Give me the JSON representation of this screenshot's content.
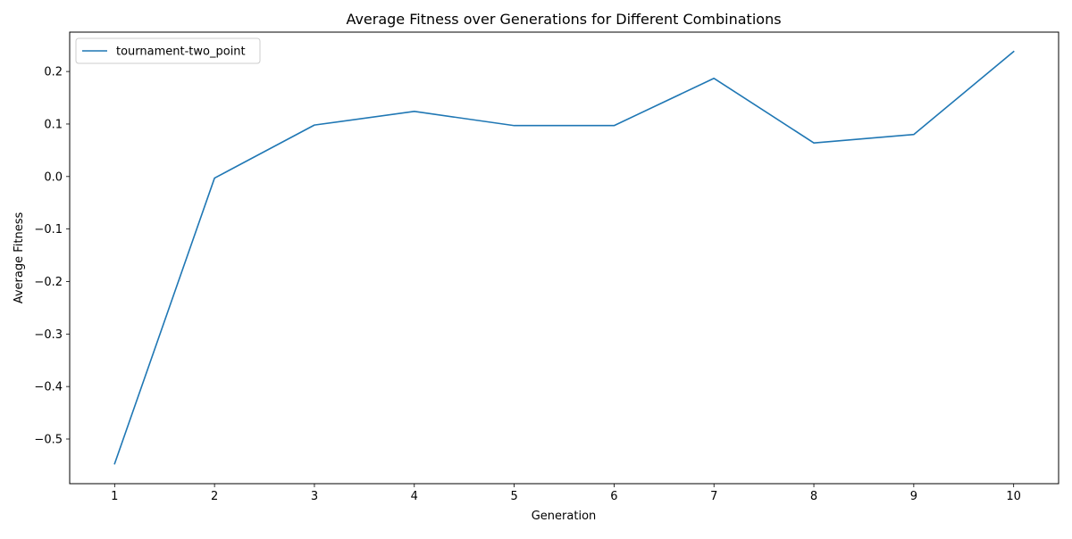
{
  "chart_data": {
    "type": "line",
    "title": "Average Fitness over Generations for Different Combinations",
    "xlabel": "Generation",
    "ylabel": "Average Fitness",
    "x": [
      1,
      2,
      3,
      4,
      5,
      6,
      7,
      8,
      9,
      10
    ],
    "xlim": [
      0.55,
      10.45
    ],
    "ylim": [
      -0.585,
      0.275
    ],
    "xticks": [
      1,
      2,
      3,
      4,
      5,
      6,
      7,
      8,
      9,
      10
    ],
    "xtick_labels": [
      "1",
      "2",
      "3",
      "4",
      "5",
      "6",
      "7",
      "8",
      "9",
      "10"
    ],
    "yticks": [
      -0.5,
      -0.4,
      -0.3,
      -0.2,
      -0.1,
      0.0,
      0.1,
      0.2
    ],
    "ytick_labels": [
      "−0.5",
      "−0.4",
      "−0.3",
      "−0.2",
      "−0.1",
      "0.0",
      "0.1",
      "0.2"
    ],
    "grid": false,
    "legend_position": "top-left",
    "series": [
      {
        "name": "tournament-two_point",
        "color": "#1f77b4",
        "values": [
          -0.547,
          -0.003,
          0.098,
          0.124,
          0.097,
          0.097,
          0.187,
          0.064,
          0.08,
          0.238
        ]
      }
    ]
  }
}
